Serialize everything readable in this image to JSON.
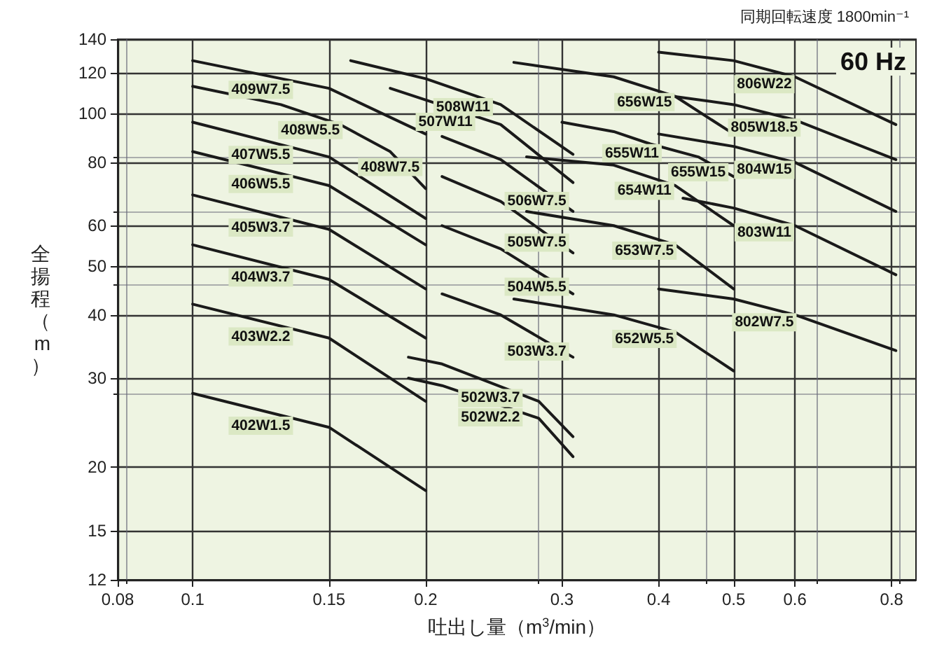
{
  "chart_data": {
    "type": "line",
    "title": "同期回転速度 1800min⁻¹",
    "annotations": [
      "60 Hz",
      {
        "text": "408W7.5",
        "x": 0.18,
        "y": 84
      },
      {
        "text": "655W15",
        "x": 0.45,
        "y": 82
      }
    ],
    "xlabel": "吐出し量（m$^{3}$/min）",
    "ylabel": "全揚程（m）",
    "log": "xy",
    "grid": true,
    "legend": false,
    "marker": "none",
    "line_style": "solid",
    "xlim": [
      0.08,
      0.86
    ],
    "ylim": [
      12,
      140
    ],
    "xticks": [
      0.08,
      0.1,
      0.15,
      0.2,
      0.3,
      0.4,
      0.5,
      0.6,
      0.8
    ],
    "yticks": [
      12,
      15,
      20,
      30,
      40,
      50,
      60,
      80,
      100,
      120,
      140
    ],
    "series": [
      {
        "name": "409W7.5",
        "color": "#1a1a1a",
        "x": [
          0.1,
          0.15,
          0.2
        ],
        "values": [
          127,
          112,
          91
        ]
      },
      {
        "name": "408W5.5",
        "color": "#1a1a1a",
        "x": [
          0.1,
          0.13,
          0.155,
          0.18,
          0.2
        ],
        "values": [
          113,
          104,
          95,
          84,
          71
        ]
      },
      {
        "name": "407W5.5",
        "color": "#1a1a1a",
        "x": [
          0.1,
          0.15,
          0.2
        ],
        "values": [
          96,
          82,
          62
        ]
      },
      {
        "name": "406W5.5",
        "color": "#1a1a1a",
        "x": [
          0.1,
          0.15,
          0.2
        ],
        "values": [
          84,
          72,
          55
        ]
      },
      {
        "name": "405W3.7",
        "color": "#1a1a1a",
        "x": [
          0.1,
          0.15,
          0.2
        ],
        "values": [
          69,
          59,
          45
        ]
      },
      {
        "name": "404W3.7",
        "color": "#1a1a1a",
        "x": [
          0.1,
          0.15,
          0.2
        ],
        "values": [
          55,
          47,
          36
        ]
      },
      {
        "name": "403W2.2",
        "color": "#1a1a1a",
        "x": [
          0.1,
          0.15,
          0.2
        ],
        "values": [
          42,
          36,
          27
        ]
      },
      {
        "name": "402W1.5",
        "color": "#1a1a1a",
        "x": [
          0.1,
          0.15,
          0.2
        ],
        "values": [
          28,
          24,
          18
        ]
      },
      {
        "name": "508W11",
        "color": "#1a1a1a",
        "x": [
          0.16,
          0.2,
          0.25,
          0.31
        ],
        "values": [
          127,
          117,
          104,
          83
        ]
      },
      {
        "name": "507W11",
        "color": "#1a1a1a",
        "x": [
          0.18,
          0.25,
          0.31
        ],
        "values": [
          112,
          95,
          73
        ]
      },
      {
        "name": "506W7.5",
        "color": "#1a1a1a",
        "x": [
          0.21,
          0.25,
          0.31
        ],
        "values": [
          90,
          81,
          64
        ]
      },
      {
        "name": "505W7.5",
        "color": "#1a1a1a",
        "x": [
          0.21,
          0.25,
          0.31
        ],
        "values": [
          75,
          67,
          53
        ]
      },
      {
        "name": "504W5.5",
        "color": "#1a1a1a",
        "x": [
          0.21,
          0.25,
          0.31
        ],
        "values": [
          60,
          54,
          44
        ]
      },
      {
        "name": "503W3.7",
        "color": "#1a1a1a",
        "x": [
          0.21,
          0.25,
          0.31
        ],
        "values": [
          44,
          40,
          33
        ]
      },
      {
        "name": "502W3.7",
        "color": "#1a1a1a",
        "x": [
          0.19,
          0.21,
          0.28,
          0.31
        ],
        "values": [
          33,
          32,
          27,
          23
        ]
      },
      {
        "name": "502W2.2",
        "color": "#1a1a1a",
        "x": [
          0.19,
          0.21,
          0.28,
          0.31
        ],
        "values": [
          30,
          29,
          25,
          21
        ]
      },
      {
        "name": "656W15",
        "color": "#1a1a1a",
        "x": [
          0.26,
          0.35,
          0.42,
          0.5
        ],
        "values": [
          126,
          118,
          108,
          91
        ]
      },
      {
        "name": "655W11",
        "color": "#1a1a1a",
        "x": [
          0.3,
          0.35,
          0.39,
          0.45,
          0.5
        ],
        "values": [
          96,
          92,
          87,
          82,
          75
        ]
      },
      {
        "name": "654W11",
        "color": "#1a1a1a",
        "x": [
          0.27,
          0.35,
          0.42,
          0.5
        ],
        "values": [
          82,
          79,
          72,
          60
        ]
      },
      {
        "name": "653W7.5",
        "color": "#1a1a1a",
        "x": [
          0.27,
          0.35,
          0.42,
          0.5
        ],
        "values": [
          64,
          60,
          55,
          45
        ]
      },
      {
        "name": "652W5.5",
        "color": "#1a1a1a",
        "x": [
          0.26,
          0.35,
          0.42,
          0.5
        ],
        "values": [
          43,
          40,
          37,
          31
        ]
      },
      {
        "name": "806W22",
        "color": "#1a1a1a",
        "x": [
          0.4,
          0.5,
          0.6,
          0.81
        ],
        "values": [
          132,
          127,
          118,
          95
        ]
      },
      {
        "name": "805W18.5",
        "color": "#1a1a1a",
        "x": [
          0.4,
          0.5,
          0.6,
          0.81
        ],
        "values": [
          109,
          104,
          97,
          81
        ]
      },
      {
        "name": "804W15",
        "color": "#1a1a1a",
        "x": [
          0.4,
          0.5,
          0.6,
          0.81
        ],
        "values": [
          91,
          86,
          80,
          64
        ]
      },
      {
        "name": "803W11",
        "color": "#1a1a1a",
        "x": [
          0.43,
          0.5,
          0.6,
          0.81
        ],
        "values": [
          68,
          65,
          60,
          48
        ]
      },
      {
        "name": "802W7.5",
        "color": "#1a1a1a",
        "x": [
          0.4,
          0.5,
          0.6,
          0.81
        ],
        "values": [
          45,
          43,
          40,
          34
        ]
      }
    ]
  }
}
